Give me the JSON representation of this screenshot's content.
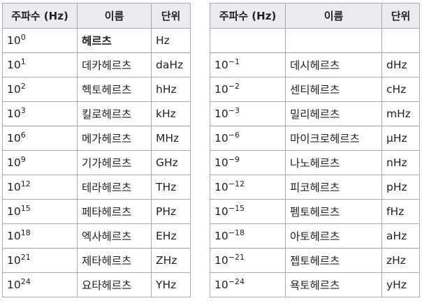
{
  "headers": {
    "left": [
      "주파수 (Hz)",
      "이름",
      "단위"
    ],
    "right": [
      "주파수 (Hz)",
      "이름",
      "단위"
    ]
  },
  "rows": [
    {
      "l_exp": "0",
      "l_name": "헤르츠",
      "l_unit": "Hz",
      "r_exp": "",
      "r_name": "",
      "r_unit": ""
    },
    {
      "l_exp": "1",
      "l_name": "데카헤르츠",
      "l_unit": "daHz",
      "r_exp": "−1",
      "r_name": "데시헤르츠",
      "r_unit": "dHz"
    },
    {
      "l_exp": "2",
      "l_name": "헥토헤르츠",
      "l_unit": "hHz",
      "r_exp": "−2",
      "r_name": "센티헤르츠",
      "r_unit": "cHz"
    },
    {
      "l_exp": "3",
      "l_name": "킬로헤르츠",
      "l_unit": "kHz",
      "r_exp": "−3",
      "r_name": "밀리헤르츠",
      "r_unit": "mHz"
    },
    {
      "l_exp": "6",
      "l_name": "메가헤르츠",
      "l_unit": "MHz",
      "r_exp": "−6",
      "r_name": "마이크로헤르츠",
      "r_unit": "µHz"
    },
    {
      "l_exp": "9",
      "l_name": "기가헤르츠",
      "l_unit": "GHz",
      "r_exp": "−9",
      "r_name": "나노헤르츠",
      "r_unit": "nHz"
    },
    {
      "l_exp": "12",
      "l_name": "테라헤르츠",
      "l_unit": "THz",
      "r_exp": "−12",
      "r_name": "피코헤르츠",
      "r_unit": "pHz"
    },
    {
      "l_exp": "15",
      "l_name": "페타헤르츠",
      "l_unit": "PHz",
      "r_exp": "−15",
      "r_name": "펨토헤르츠",
      "r_unit": "fHz"
    },
    {
      "l_exp": "18",
      "l_name": "엑사헤르츠",
      "l_unit": "EHz",
      "r_exp": "−18",
      "r_name": "아토헤르츠",
      "r_unit": "aHz"
    },
    {
      "l_exp": "21",
      "l_name": "제타헤르츠",
      "l_unit": "ZHz",
      "r_exp": "−21",
      "r_name": "젭토헤르츠",
      "r_unit": "zHz"
    },
    {
      "l_exp": "24",
      "l_name": "요타헤르츠",
      "l_unit": "YHz",
      "r_exp": "−24",
      "r_name": "욕토헤르츠",
      "r_unit": "yHz"
    }
  ],
  "base": "10"
}
